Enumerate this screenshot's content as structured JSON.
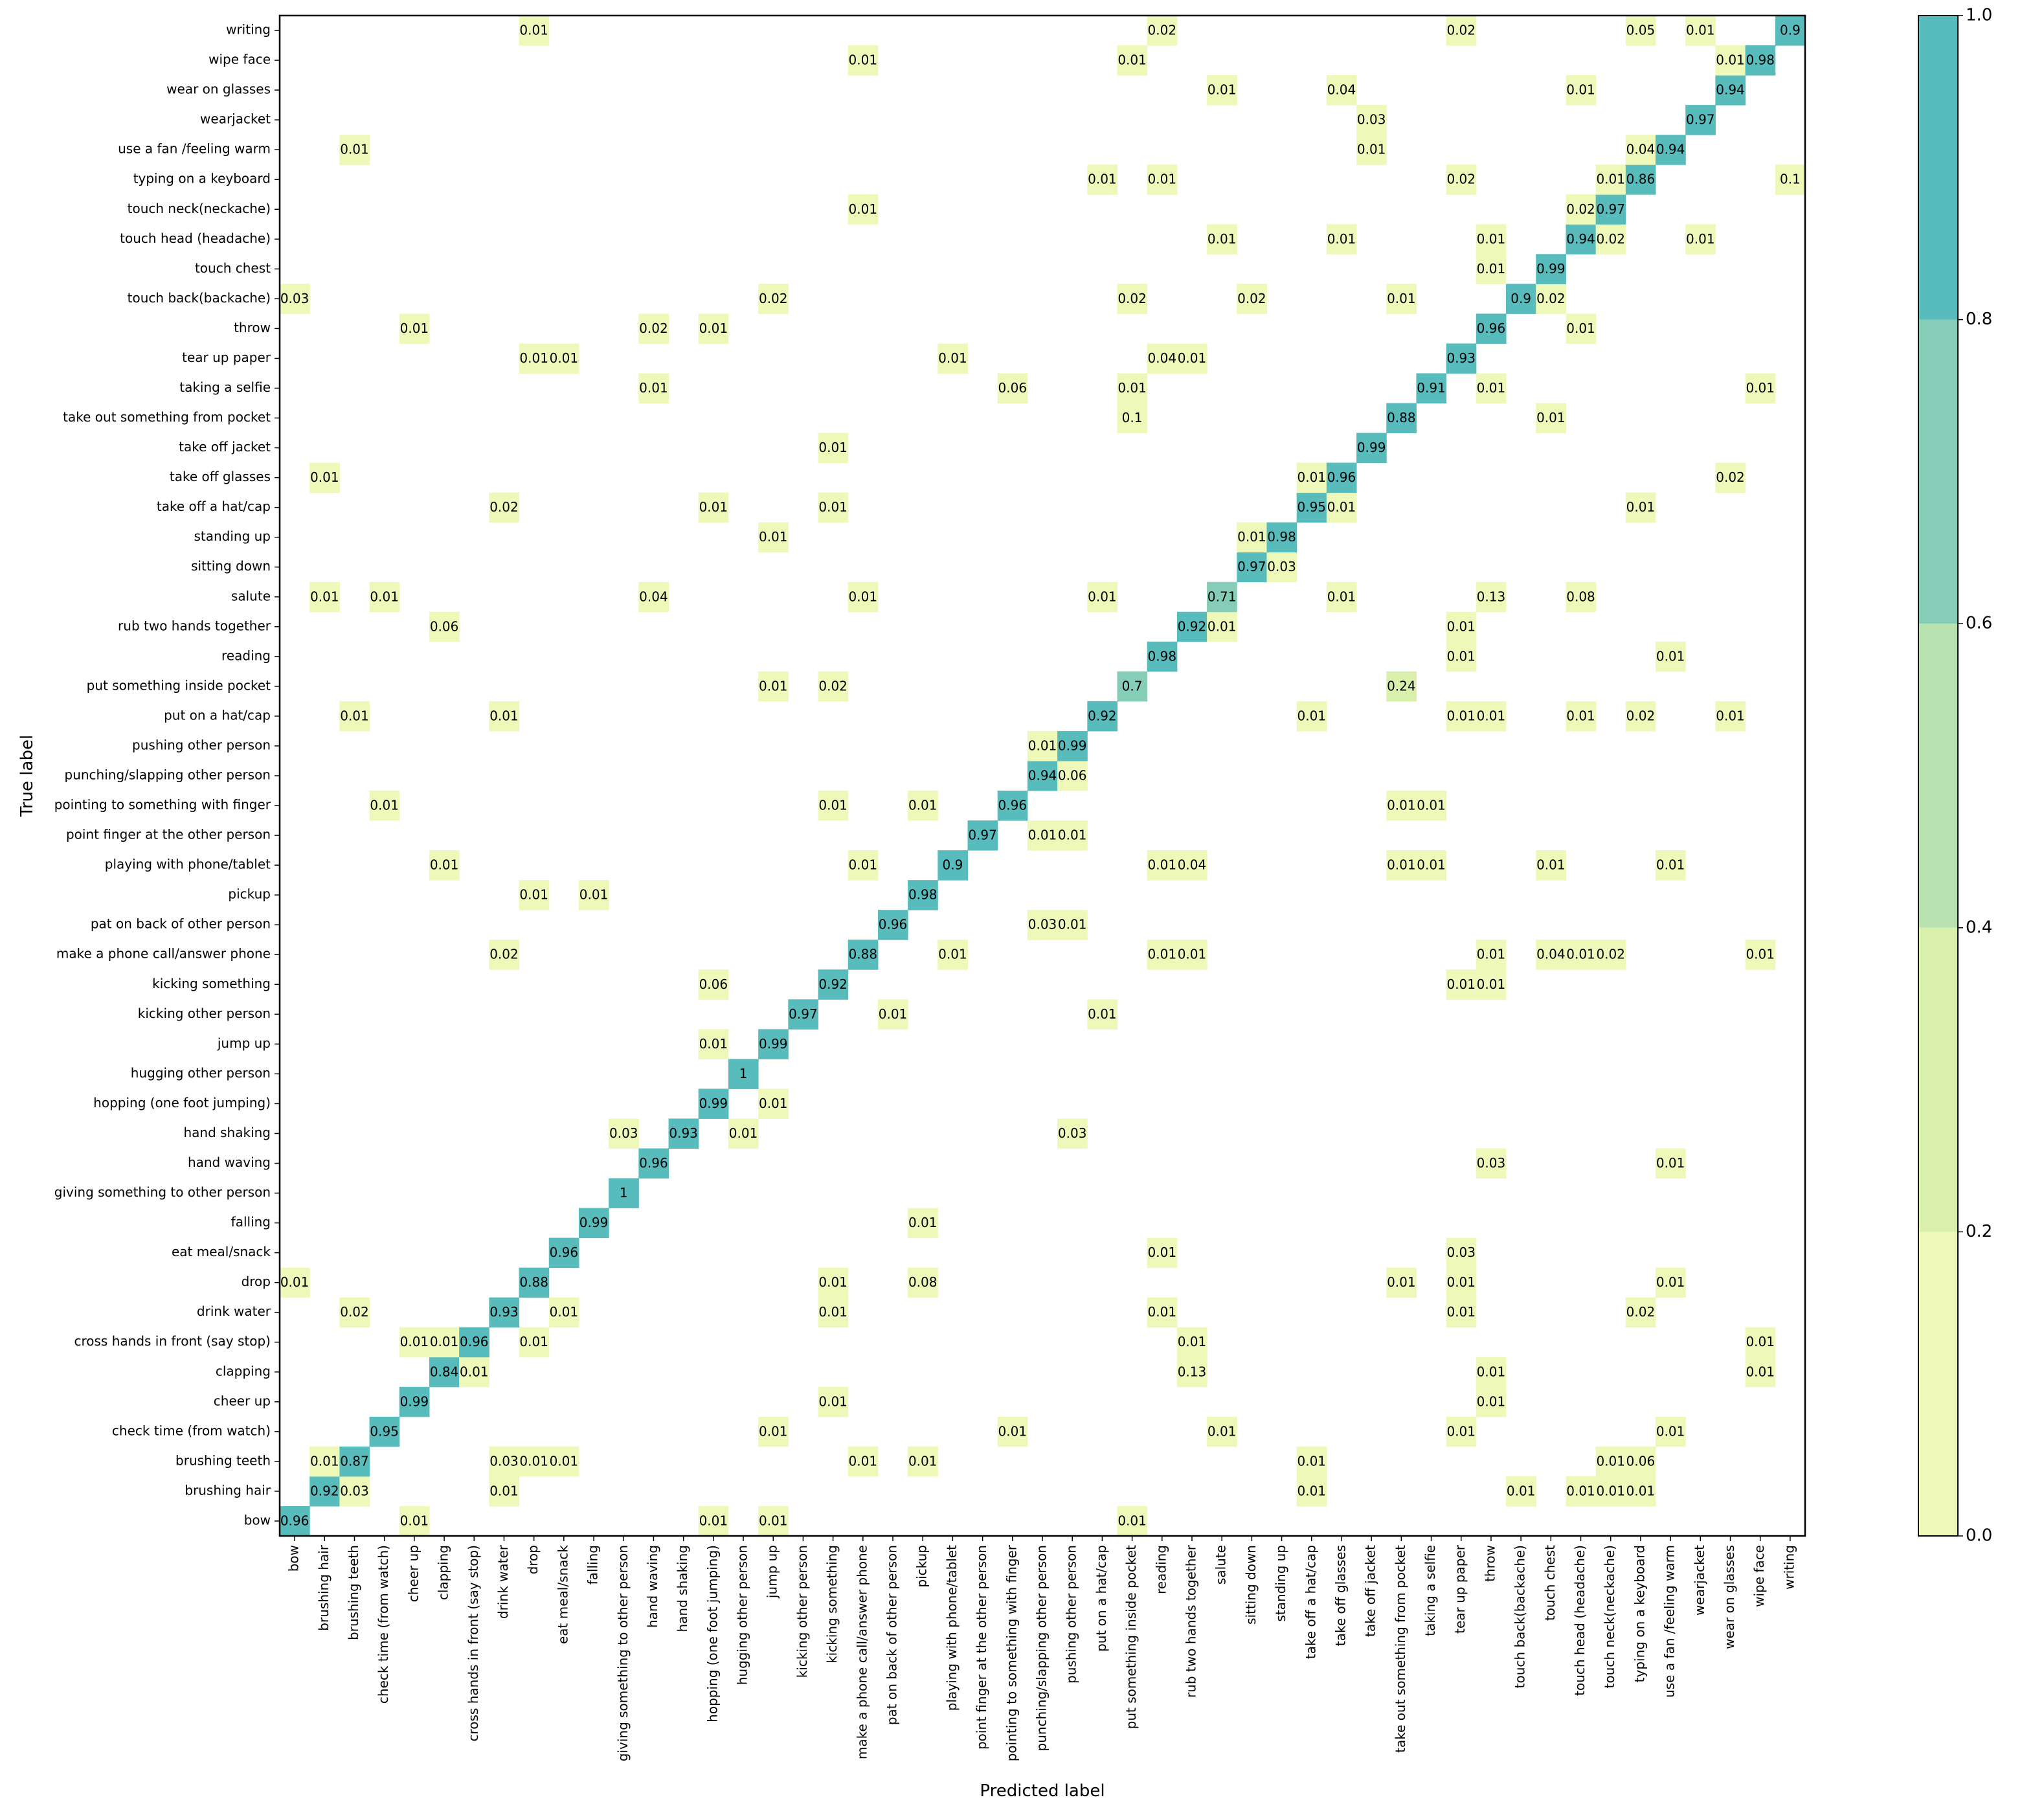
{
  "chart_data": {
    "type": "heatmap",
    "title": "",
    "xlabel": "Predicted label",
    "ylabel": "True label",
    "labels": [
      "bow",
      "brushing hair",
      "brushing teeth",
      "check time (from watch)",
      "cheer up",
      "clapping",
      "cross hands in front (say stop)",
      "drink water",
      "drop",
      "eat meal/snack",
      "falling",
      "giving something to other person",
      "hand waving",
      "hand shaking",
      "hopping (one foot jumping)",
      "hugging other person",
      "jump up",
      "kicking other person",
      "kicking something",
      "make a phone call/answer phone",
      "pat on back of other person",
      "pickup",
      "playing with phone/tablet",
      "point finger at the other person",
      "pointing to something with finger",
      "punching/slapping other person",
      "pushing other person",
      "put on a hat/cap",
      "put something inside pocket",
      "reading",
      "rub two hands together",
      "salute",
      "sitting down",
      "standing up",
      "take off a hat/cap",
      "take off glasses",
      "take off jacket",
      "take out something from pocket",
      "taking a selfie",
      "tear up paper",
      "throw",
      "touch back(backache)",
      "touch chest",
      "touch head (headache)",
      "touch neck(neckache)",
      "typing on a keyboard",
      "use a fan /feeling warm",
      "wearjacket",
      "wear on glasses",
      "wipe face",
      "writing"
    ],
    "cells": [
      [
        0,
        0,
        "0.96"
      ],
      [
        0,
        4,
        "0.01"
      ],
      [
        0,
        14,
        "0.01"
      ],
      [
        0,
        16,
        "0.01"
      ],
      [
        0,
        28,
        "0.01"
      ],
      [
        1,
        1,
        "0.92"
      ],
      [
        1,
        2,
        "0.03"
      ],
      [
        1,
        7,
        "0.01"
      ],
      [
        1,
        34,
        "0.01"
      ],
      [
        1,
        41,
        "0.01"
      ],
      [
        1,
        43,
        "0.01"
      ],
      [
        1,
        44,
        "0.01"
      ],
      [
        1,
        45,
        "0.01"
      ],
      [
        2,
        1,
        "0.01"
      ],
      [
        2,
        2,
        "0.87"
      ],
      [
        2,
        7,
        "0.03"
      ],
      [
        2,
        8,
        "0.01"
      ],
      [
        2,
        9,
        "0.01"
      ],
      [
        2,
        19,
        "0.01"
      ],
      [
        2,
        21,
        "0.01"
      ],
      [
        2,
        34,
        "0.01"
      ],
      [
        2,
        44,
        "0.01"
      ],
      [
        2,
        45,
        "0.06"
      ],
      [
        3,
        3,
        "0.95"
      ],
      [
        3,
        16,
        "0.01"
      ],
      [
        3,
        24,
        "0.01"
      ],
      [
        3,
        31,
        "0.01"
      ],
      [
        3,
        39,
        "0.01"
      ],
      [
        3,
        46,
        "0.01"
      ],
      [
        4,
        4,
        "0.99"
      ],
      [
        4,
        18,
        "0.01"
      ],
      [
        4,
        40,
        "0.01"
      ],
      [
        5,
        5,
        "0.84"
      ],
      [
        5,
        6,
        "0.01"
      ],
      [
        5,
        30,
        "0.13"
      ],
      [
        5,
        40,
        "0.01"
      ],
      [
        5,
        49,
        "0.01"
      ],
      [
        6,
        4,
        "0.01"
      ],
      [
        6,
        5,
        "0.01"
      ],
      [
        6,
        6,
        "0.96"
      ],
      [
        6,
        8,
        "0.01"
      ],
      [
        6,
        30,
        "0.01"
      ],
      [
        6,
        49,
        "0.01"
      ],
      [
        7,
        2,
        "0.02"
      ],
      [
        7,
        7,
        "0.93"
      ],
      [
        7,
        9,
        "0.01"
      ],
      [
        7,
        18,
        "0.01"
      ],
      [
        7,
        29,
        "0.01"
      ],
      [
        7,
        39,
        "0.01"
      ],
      [
        7,
        45,
        "0.02"
      ],
      [
        8,
        0,
        "0.01"
      ],
      [
        8,
        8,
        "0.88"
      ],
      [
        8,
        18,
        "0.01"
      ],
      [
        8,
        21,
        "0.08"
      ],
      [
        8,
        37,
        "0.01"
      ],
      [
        8,
        39,
        "0.01"
      ],
      [
        8,
        46,
        "0.01"
      ],
      [
        9,
        9,
        "0.96"
      ],
      [
        9,
        29,
        "0.01"
      ],
      [
        9,
        39,
        "0.03"
      ],
      [
        10,
        10,
        "0.99"
      ],
      [
        10,
        21,
        "0.01"
      ],
      [
        11,
        11,
        "1"
      ],
      [
        12,
        12,
        "0.96"
      ],
      [
        12,
        40,
        "0.03"
      ],
      [
        12,
        46,
        "0.01"
      ],
      [
        13,
        11,
        "0.03"
      ],
      [
        13,
        13,
        "0.93"
      ],
      [
        13,
        15,
        "0.01"
      ],
      [
        13,
        26,
        "0.03"
      ],
      [
        14,
        14,
        "0.99"
      ],
      [
        14,
        16,
        "0.01"
      ],
      [
        15,
        15,
        "1"
      ],
      [
        16,
        14,
        "0.01"
      ],
      [
        16,
        16,
        "0.99"
      ],
      [
        17,
        17,
        "0.97"
      ],
      [
        17,
        20,
        "0.01"
      ],
      [
        17,
        27,
        "0.01"
      ],
      [
        18,
        14,
        "0.06"
      ],
      [
        18,
        18,
        "0.92"
      ],
      [
        18,
        39,
        "0.01"
      ],
      [
        18,
        40,
        "0.01"
      ],
      [
        19,
        7,
        "0.02"
      ],
      [
        19,
        19,
        "0.88"
      ],
      [
        19,
        22,
        "0.01"
      ],
      [
        19,
        29,
        "0.01"
      ],
      [
        19,
        30,
        "0.01"
      ],
      [
        19,
        40,
        "0.01"
      ],
      [
        19,
        42,
        "0.04"
      ],
      [
        19,
        43,
        "0.01"
      ],
      [
        19,
        44,
        "0.02"
      ],
      [
        19,
        49,
        "0.01"
      ],
      [
        20,
        20,
        "0.96"
      ],
      [
        20,
        25,
        "0.03"
      ],
      [
        20,
        26,
        "0.01"
      ],
      [
        21,
        8,
        "0.01"
      ],
      [
        21,
        10,
        "0.01"
      ],
      [
        21,
        21,
        "0.98"
      ],
      [
        22,
        5,
        "0.01"
      ],
      [
        22,
        19,
        "0.01"
      ],
      [
        22,
        22,
        "0.9"
      ],
      [
        22,
        29,
        "0.01"
      ],
      [
        22,
        30,
        "0.04"
      ],
      [
        22,
        37,
        "0.01"
      ],
      [
        22,
        38,
        "0.01"
      ],
      [
        22,
        42,
        "0.01"
      ],
      [
        22,
        46,
        "0.01"
      ],
      [
        23,
        23,
        "0.97"
      ],
      [
        23,
        25,
        "0.01"
      ],
      [
        23,
        26,
        "0.01"
      ],
      [
        24,
        3,
        "0.01"
      ],
      [
        24,
        18,
        "0.01"
      ],
      [
        24,
        21,
        "0.01"
      ],
      [
        24,
        24,
        "0.96"
      ],
      [
        24,
        37,
        "0.01"
      ],
      [
        24,
        38,
        "0.01"
      ],
      [
        25,
        25,
        "0.94"
      ],
      [
        25,
        26,
        "0.06"
      ],
      [
        26,
        25,
        "0.01"
      ],
      [
        26,
        26,
        "0.99"
      ],
      [
        27,
        2,
        "0.01"
      ],
      [
        27,
        7,
        "0.01"
      ],
      [
        27,
        27,
        "0.92"
      ],
      [
        27,
        34,
        "0.01"
      ],
      [
        27,
        39,
        "0.01"
      ],
      [
        27,
        40,
        "0.01"
      ],
      [
        27,
        43,
        "0.01"
      ],
      [
        27,
        45,
        "0.02"
      ],
      [
        27,
        48,
        "0.01"
      ],
      [
        28,
        16,
        "0.01"
      ],
      [
        28,
        18,
        "0.02"
      ],
      [
        28,
        28,
        "0.7"
      ],
      [
        28,
        37,
        "0.24"
      ],
      [
        29,
        29,
        "0.98"
      ],
      [
        29,
        39,
        "0.01"
      ],
      [
        29,
        46,
        "0.01"
      ],
      [
        30,
        5,
        "0.06"
      ],
      [
        30,
        30,
        "0.92"
      ],
      [
        30,
        31,
        "0.01"
      ],
      [
        30,
        39,
        "0.01"
      ],
      [
        31,
        1,
        "0.01"
      ],
      [
        31,
        3,
        "0.01"
      ],
      [
        31,
        12,
        "0.04"
      ],
      [
        31,
        19,
        "0.01"
      ],
      [
        31,
        27,
        "0.01"
      ],
      [
        31,
        31,
        "0.71"
      ],
      [
        31,
        35,
        "0.01"
      ],
      [
        31,
        40,
        "0.13"
      ],
      [
        31,
        43,
        "0.08"
      ],
      [
        32,
        32,
        "0.97"
      ],
      [
        32,
        33,
        "0.03"
      ],
      [
        33,
        16,
        "0.01"
      ],
      [
        33,
        32,
        "0.01"
      ],
      [
        33,
        33,
        "0.98"
      ],
      [
        34,
        7,
        "0.02"
      ],
      [
        34,
        14,
        "0.01"
      ],
      [
        34,
        18,
        "0.01"
      ],
      [
        34,
        34,
        "0.95"
      ],
      [
        34,
        35,
        "0.01"
      ],
      [
        34,
        45,
        "0.01"
      ],
      [
        35,
        1,
        "0.01"
      ],
      [
        35,
        34,
        "0.01"
      ],
      [
        35,
        35,
        "0.96"
      ],
      [
        35,
        48,
        "0.02"
      ],
      [
        36,
        18,
        "0.01"
      ],
      [
        36,
        36,
        "0.99"
      ],
      [
        37,
        28,
        "0.1"
      ],
      [
        37,
        37,
        "0.88"
      ],
      [
        37,
        42,
        "0.01"
      ],
      [
        38,
        12,
        "0.01"
      ],
      [
        38,
        24,
        "0.06"
      ],
      [
        38,
        28,
        "0.01"
      ],
      [
        38,
        38,
        "0.91"
      ],
      [
        38,
        40,
        "0.01"
      ],
      [
        38,
        49,
        "0.01"
      ],
      [
        39,
        8,
        "0.01"
      ],
      [
        39,
        9,
        "0.01"
      ],
      [
        39,
        22,
        "0.01"
      ],
      [
        39,
        29,
        "0.04"
      ],
      [
        39,
        30,
        "0.01"
      ],
      [
        39,
        39,
        "0.93"
      ],
      [
        40,
        4,
        "0.01"
      ],
      [
        40,
        12,
        "0.02"
      ],
      [
        40,
        14,
        "0.01"
      ],
      [
        40,
        40,
        "0.96"
      ],
      [
        40,
        43,
        "0.01"
      ],
      [
        41,
        0,
        "0.03"
      ],
      [
        41,
        16,
        "0.02"
      ],
      [
        41,
        28,
        "0.02"
      ],
      [
        41,
        32,
        "0.02"
      ],
      [
        41,
        37,
        "0.01"
      ],
      [
        41,
        41,
        "0.9"
      ],
      [
        41,
        42,
        "0.02"
      ],
      [
        42,
        40,
        "0.01"
      ],
      [
        42,
        42,
        "0.99"
      ],
      [
        43,
        31,
        "0.01"
      ],
      [
        43,
        35,
        "0.01"
      ],
      [
        43,
        40,
        "0.01"
      ],
      [
        43,
        43,
        "0.94"
      ],
      [
        43,
        44,
        "0.02"
      ],
      [
        43,
        47,
        "0.01"
      ],
      [
        44,
        19,
        "0.01"
      ],
      [
        44,
        43,
        "0.02"
      ],
      [
        44,
        44,
        "0.97"
      ],
      [
        45,
        27,
        "0.01"
      ],
      [
        45,
        29,
        "0.01"
      ],
      [
        45,
        39,
        "0.02"
      ],
      [
        45,
        44,
        "0.01"
      ],
      [
        45,
        45,
        "0.86"
      ],
      [
        45,
        50,
        "0.1"
      ],
      [
        46,
        2,
        "0.01"
      ],
      [
        46,
        36,
        "0.01"
      ],
      [
        46,
        45,
        "0.04"
      ],
      [
        46,
        46,
        "0.94"
      ],
      [
        47,
        36,
        "0.03"
      ],
      [
        47,
        47,
        "0.97"
      ],
      [
        48,
        31,
        "0.01"
      ],
      [
        48,
        35,
        "0.04"
      ],
      [
        48,
        43,
        "0.01"
      ],
      [
        48,
        48,
        "0.94"
      ],
      [
        49,
        19,
        "0.01"
      ],
      [
        49,
        28,
        "0.01"
      ],
      [
        49,
        48,
        "0.01"
      ],
      [
        49,
        49,
        "0.98"
      ],
      [
        50,
        8,
        "0.01"
      ],
      [
        50,
        29,
        "0.02"
      ],
      [
        50,
        39,
        "0.02"
      ],
      [
        50,
        45,
        "0.05"
      ],
      [
        50,
        47,
        "0.01"
      ],
      [
        50,
        50,
        "0.9"
      ]
    ],
    "colorbar": {
      "ticks": [
        "0.0",
        "0.2",
        "0.4",
        "0.6",
        "0.8",
        "1.0"
      ],
      "bins": [
        {
          "min": 0.0,
          "max": 0.2,
          "color": "#eef8b9"
        },
        {
          "min": 0.2,
          "max": 0.4,
          "color": "#d8f0ab"
        },
        {
          "min": 0.4,
          "max": 0.6,
          "color": "#b8e3b1"
        },
        {
          "min": 0.6,
          "max": 0.8,
          "color": "#86cdb8"
        },
        {
          "min": 0.8,
          "max": 1.0,
          "color": "#58bcbd"
        }
      ]
    },
    "vlim": [
      0,
      1
    ]
  }
}
